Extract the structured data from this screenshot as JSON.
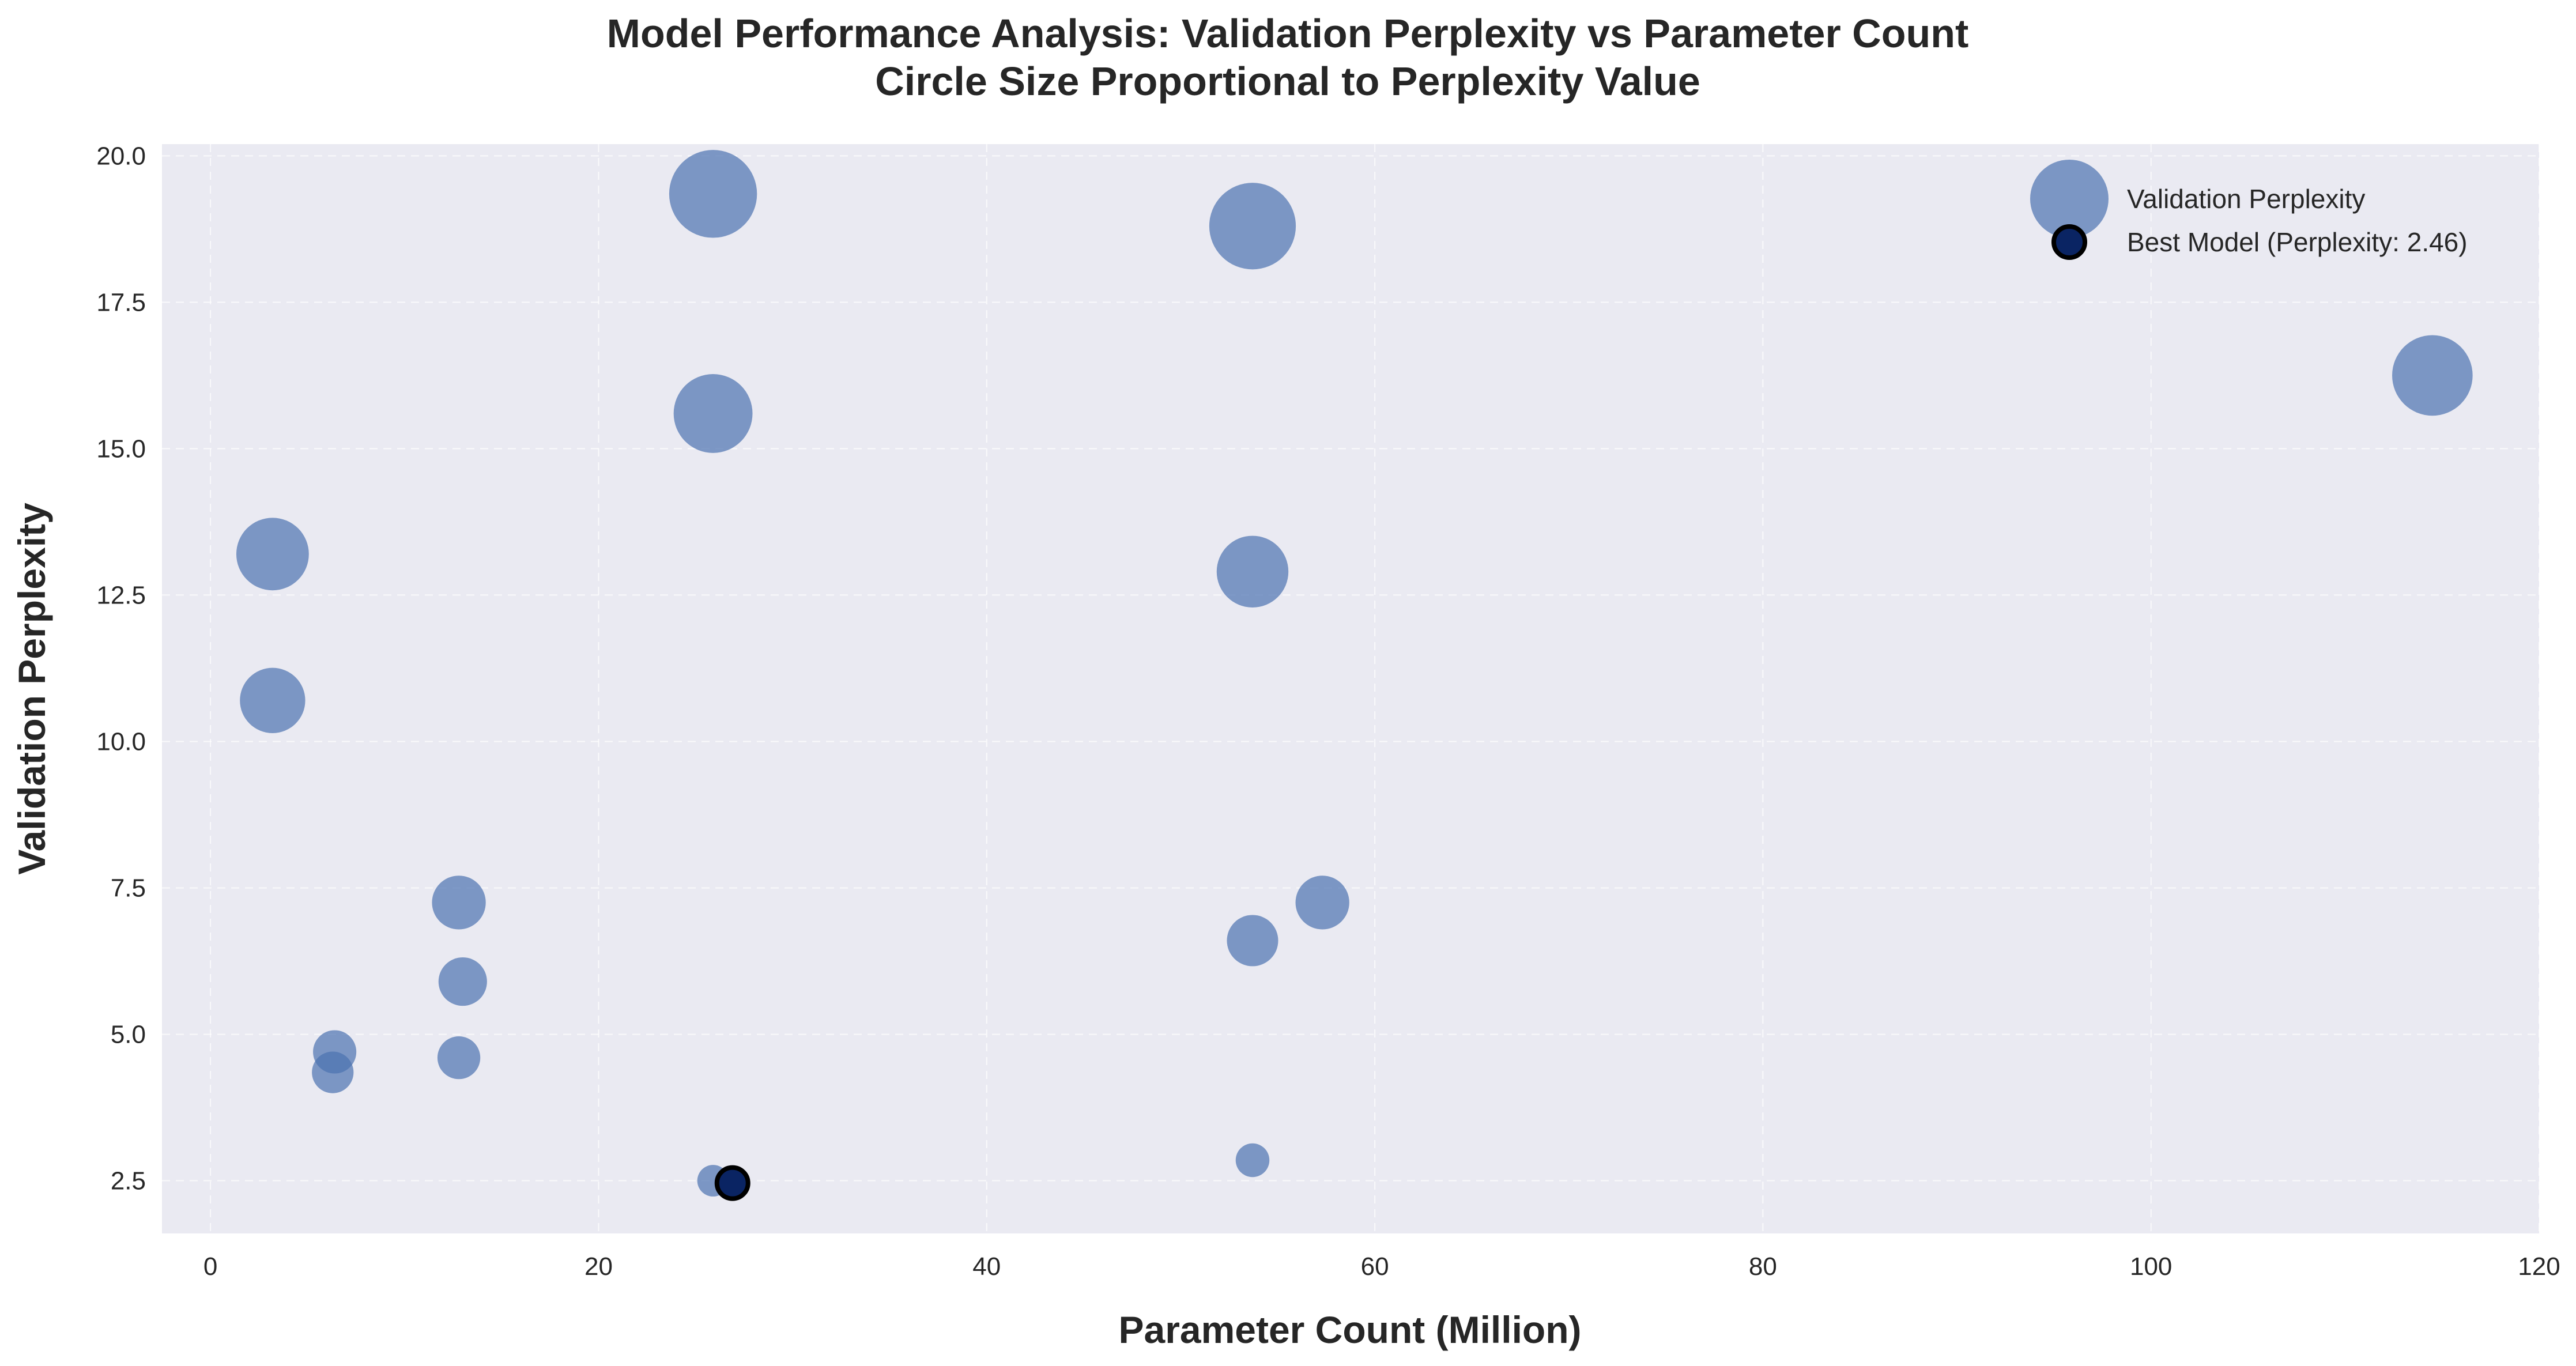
{
  "chart_data": {
    "type": "scatter",
    "title": "Model Performance Analysis: Validation Perplexity vs Parameter Count",
    "subtitle": "Circle Size Proportional to Perplexity Value",
    "xlabel": "Parameter Count (Million)",
    "ylabel": "Validation Perplexity",
    "xlim": [
      -2.5,
      120
    ],
    "ylim": [
      1.6,
      20.2
    ],
    "xticks": [
      0,
      20,
      40,
      60,
      80,
      100,
      120
    ],
    "xtick_labels": [
      "0",
      "20",
      "40",
      "60",
      "80",
      "100",
      "120"
    ],
    "yticks": [
      2.5,
      5.0,
      7.5,
      10.0,
      12.5,
      15.0,
      17.5,
      20.0
    ],
    "ytick_labels": [
      "2.5",
      "5.0",
      "7.5",
      "10.0",
      "12.5",
      "15.0",
      "17.5",
      "20.0"
    ],
    "grid": true,
    "legend_position": "top-right",
    "series": [
      {
        "name": "Validation Perplexity",
        "color": "#4c72b0",
        "size_encodes": "y",
        "points": [
          {
            "x": 25.9,
            "y": 19.35
          },
          {
            "x": 53.7,
            "y": 18.8
          },
          {
            "x": 114.5,
            "y": 16.25
          },
          {
            "x": 25.9,
            "y": 15.6
          },
          {
            "x": 3.2,
            "y": 13.2
          },
          {
            "x": 53.7,
            "y": 12.9
          },
          {
            "x": 3.2,
            "y": 10.7
          },
          {
            "x": 12.8,
            "y": 7.25
          },
          {
            "x": 57.3,
            "y": 7.25
          },
          {
            "x": 53.7,
            "y": 6.6
          },
          {
            "x": 13.0,
            "y": 5.9
          },
          {
            "x": 6.4,
            "y": 4.7
          },
          {
            "x": 12.8,
            "y": 4.6
          },
          {
            "x": 6.3,
            "y": 4.35
          },
          {
            "x": 53.7,
            "y": 2.85
          },
          {
            "x": 25.9,
            "y": 2.5
          },
          {
            "x": 26.9,
            "y": 2.46
          }
        ]
      },
      {
        "name": "Best Model (Perplexity: 2.46)",
        "color": "#0a2463",
        "edge_color": "#000000",
        "points": [
          {
            "x": 26.9,
            "y": 2.46
          }
        ]
      }
    ]
  },
  "colors": {
    "plot_background": "#eaeaf2",
    "grid": "#ffffff",
    "scatter_fill": "#4c72b0",
    "best_fill": "#0a2463"
  }
}
